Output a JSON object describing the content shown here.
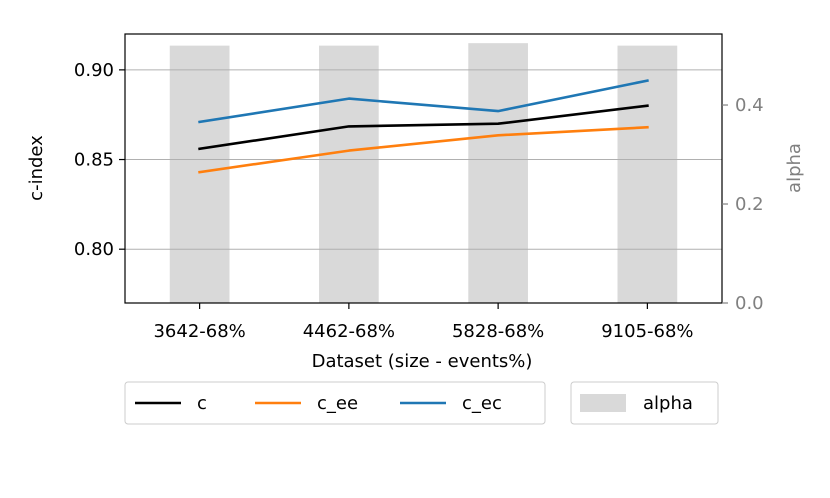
{
  "chart_data": {
    "type": "line",
    "categories": [
      "3642-68%",
      "4462-68%",
      "5828-68%",
      "9105-68%"
    ],
    "series": [
      {
        "name": "c",
        "values": [
          0.856,
          0.8685,
          0.87,
          0.88
        ],
        "color": "#000000"
      },
      {
        "name": "c_ee",
        "values": [
          0.843,
          0.855,
          0.8635,
          0.868
        ],
        "color": "#ff7f0e"
      },
      {
        "name": "c_ec",
        "values": [
          0.871,
          0.884,
          0.877,
          0.894
        ],
        "color": "#1f77b4"
      }
    ],
    "bars": {
      "name": "alpha",
      "values": [
        0.52,
        0.52,
        0.525,
        0.52
      ],
      "color": "#d9d9d9"
    },
    "xlabel": "Dataset (size - events%)",
    "ylabel": "c-index",
    "y2label": "alpha",
    "ylim": [
      0.77,
      0.92
    ],
    "y2lim": [
      0.0,
      0.5435
    ],
    "yticks": [
      0.8,
      0.85,
      0.9
    ],
    "ytick_labels": [
      "0.80",
      "0.85",
      "0.90"
    ],
    "y2ticks": [
      0.0,
      0.2,
      0.4
    ],
    "y2tick_labels": [
      "0.0",
      "0.2",
      "0.4"
    ],
    "grid": "y-major",
    "legend_placement": "bottom-center",
    "legend_entries": [
      "c",
      "c_ee",
      "c_ec",
      "alpha"
    ]
  }
}
